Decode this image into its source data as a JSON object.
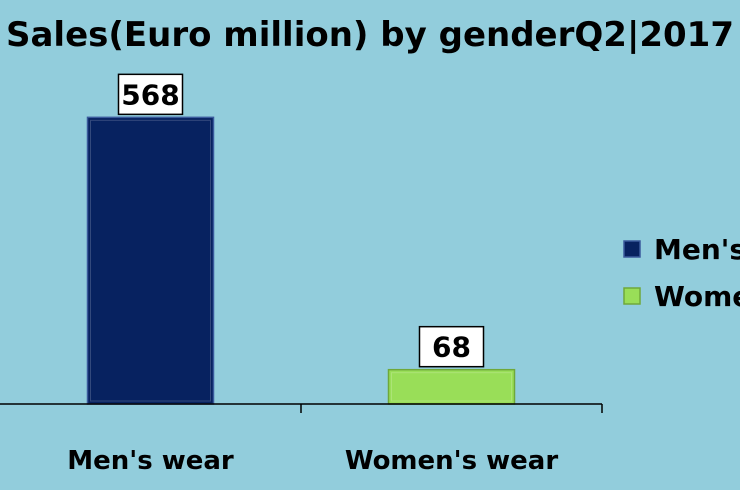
{
  "chart_data": {
    "type": "bar",
    "title": "Sales(Euro million) by genderQ2|2017",
    "categories": [
      "Men's wear",
      "Women's wear"
    ],
    "values": [
      568,
      68
    ],
    "colors": [
      "#072260",
      "#99de58"
    ],
    "ylim": [
      0,
      640
    ],
    "grid": false,
    "data_labels": true,
    "legend": {
      "position": "right",
      "entries": [
        "Men's wear",
        "Women's wear"
      ]
    }
  }
}
